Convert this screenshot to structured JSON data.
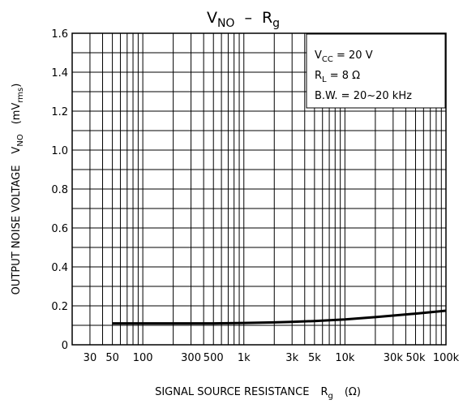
{
  "chart_data": {
    "type": "line",
    "title": {
      "main": "V",
      "main_sub": "NO",
      "dash": "–",
      "r": "R",
      "r_sub": "g"
    },
    "xlabel": {
      "text": "SIGNAL SOURCE RESISTANCE",
      "sym": "R",
      "sym_sub": "g",
      "unit": "(Ω)"
    },
    "ylabel": {
      "text": "OUTPUT NOISE VOLTAGE",
      "sym": "V",
      "sym_sub": "NO",
      "unit_open": "(mV",
      "unit_sub": "rms",
      "unit_close": ")"
    },
    "x_scale": "log",
    "xlim": [
      20,
      100000
    ],
    "ylim": [
      0,
      1.6
    ],
    "grid": true,
    "x_ticks": [
      {
        "value": 30,
        "label": "30"
      },
      {
        "value": 50,
        "label": "50"
      },
      {
        "value": 100,
        "label": "100"
      },
      {
        "value": 300,
        "label": "300"
      },
      {
        "value": 500,
        "label": "500"
      },
      {
        "value": 1000,
        "label": "1k"
      },
      {
        "value": 3000,
        "label": "3k"
      },
      {
        "value": 5000,
        "label": "5k"
      },
      {
        "value": 10000,
        "label": "10k"
      },
      {
        "value": 30000,
        "label": "30k"
      },
      {
        "value": 50000,
        "label": "50k"
      },
      {
        "value": 100000,
        "label": "100k"
      }
    ],
    "y_ticks": [
      {
        "value": 0,
        "label": "0"
      },
      {
        "value": 0.2,
        "label": "0.2"
      },
      {
        "value": 0.4,
        "label": "0.4"
      },
      {
        "value": 0.6,
        "label": "0.6"
      },
      {
        "value": 0.8,
        "label": "0.8"
      },
      {
        "value": 1.0,
        "label": "1.0"
      },
      {
        "value": 1.2,
        "label": "1.2"
      },
      {
        "value": 1.4,
        "label": "1.4"
      },
      {
        "value": 1.6,
        "label": "1.6"
      }
    ],
    "annotation": [
      {
        "pre": "V",
        "sub": "CC",
        "post": " = 20 V"
      },
      {
        "pre": "R",
        "sub": "L",
        "post": " = 8 Ω"
      },
      {
        "pre": "B.W. = 20~20 kHz",
        "sub": "",
        "post": ""
      }
    ],
    "series": [
      {
        "x": [
          50,
          100,
          200,
          300,
          500,
          1000,
          2000,
          3000,
          5000,
          10000,
          20000,
          30000,
          50000,
          100000
        ],
        "y": [
          0.11,
          0.11,
          0.11,
          0.11,
          0.11,
          0.112,
          0.115,
          0.118,
          0.122,
          0.13,
          0.142,
          0.15,
          0.16,
          0.175
        ]
      }
    ]
  }
}
